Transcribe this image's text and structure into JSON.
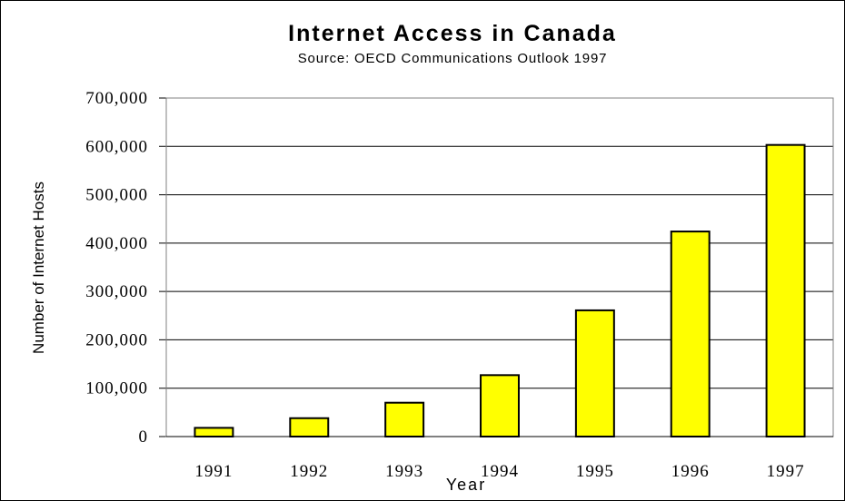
{
  "chart_data": {
    "type": "bar",
    "title": "Internet Access in Canada",
    "subtitle": "Source:  OECD Communications Outlook 1997",
    "xlabel": "Year",
    "ylabel": "Number of Internet Hosts",
    "categories": [
      "1991",
      "1992",
      "1993",
      "1994",
      "1995",
      "1996",
      "1997"
    ],
    "values": [
      18000,
      38000,
      70000,
      127000,
      261000,
      424000,
      603000
    ],
    "ylim": [
      0,
      700000
    ],
    "yticks": [
      0,
      100000,
      200000,
      300000,
      400000,
      500000,
      600000,
      700000
    ],
    "ytick_labels": [
      "0",
      "100,000",
      "200,000",
      "300,000",
      "400,000",
      "500,000",
      "600,000",
      "700,000"
    ],
    "grid": true,
    "bar_color": "#FFFF00",
    "bar_edge_color": "#000000"
  }
}
